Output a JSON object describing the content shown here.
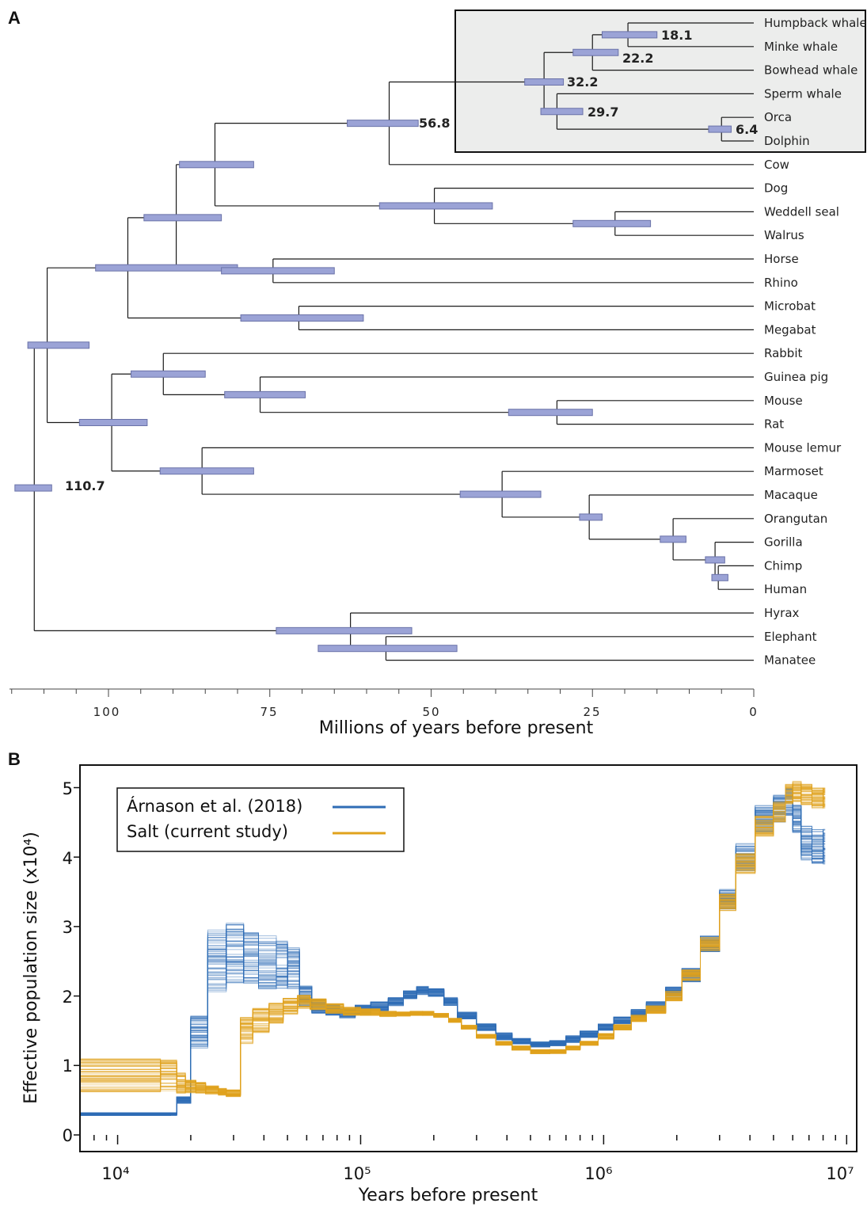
{
  "chart_data": [
    {
      "type": "tree",
      "panel_label": "A",
      "xlabel": "Millions of years before present",
      "x_ticks": [
        "100",
        "75",
        "50",
        "25",
        "0"
      ],
      "xlim": [
        115,
        0
      ],
      "taxa": [
        "Humpback whale",
        "Minke whale",
        "Bowhead whale",
        "Sperm whale",
        "Orca",
        "Dolphin",
        "Cow",
        "Dog",
        "Weddell seal",
        "Walrus",
        "Horse",
        "Rhino",
        "Microbat",
        "Megabat",
        "Rabbit",
        "Guinea pig",
        "Mouse",
        "Rat",
        "Mouse lemur",
        "Marmoset",
        "Macaque",
        "Orangutan",
        "Gorilla",
        "Chimp",
        "Human",
        "Hyrax",
        "Elephant",
        "Manatee"
      ],
      "highlighted_clade": [
        "Humpback whale",
        "Minke whale",
        "Bowhead whale",
        "Sperm whale",
        "Orca",
        "Dolphin"
      ],
      "node_age_labels": [
        {
          "node": "Humpback whale + Minke whale",
          "age": "18.1"
        },
        {
          "node": "Mysticeti",
          "age": "22.2"
        },
        {
          "node": "Cetacea",
          "age": "32.2"
        },
        {
          "node": "Odontoceti",
          "age": "29.7"
        },
        {
          "node": "Orca + Dolphin",
          "age": "6.4"
        },
        {
          "node": "Cetacea + Cow",
          "age": "56.8"
        },
        {
          "node": "Root",
          "age": "110.7"
        }
      ]
    },
    {
      "type": "line",
      "panel_label": "B",
      "xlabel": "Years before present",
      "ylabel": "Effective population size (x10⁴)",
      "x_scale": "log",
      "xlim": [
        7000,
        11000000
      ],
      "ylim": [
        0,
        5.3
      ],
      "x_ticks": [
        "10⁴",
        "10⁵",
        "10⁶",
        "10⁷"
      ],
      "y_ticks": [
        "0",
        "1",
        "2",
        "3",
        "4",
        "5"
      ],
      "legend_position": "top-left",
      "series": [
        {
          "name": "Árnason et al. (2018)",
          "color": "#2f6db5",
          "x": [
            7000,
            16500,
            17500,
            20000,
            23500,
            28000,
            33000,
            38000,
            45000,
            50000,
            56000,
            63000,
            72000,
            82000,
            95000,
            110000,
            130000,
            150000,
            170000,
            190000,
            220000,
            250000,
            300000,
            360000,
            420000,
            500000,
            600000,
            700000,
            800000,
            950000,
            1100000,
            1300000,
            1500000,
            1800000,
            2100000,
            2500000,
            3000000,
            3500000,
            4200000,
            5000000,
            5600000,
            6000000,
            6500000,
            7200000,
            8000000
          ],
          "values": [
            0.3,
            0.3,
            0.5,
            1.5,
            2.5,
            2.6,
            2.55,
            2.5,
            2.45,
            2.4,
            2.0,
            1.85,
            1.8,
            1.75,
            1.8,
            1.85,
            1.92,
            2.02,
            2.08,
            2.05,
            1.92,
            1.72,
            1.55,
            1.42,
            1.35,
            1.3,
            1.32,
            1.38,
            1.45,
            1.55,
            1.65,
            1.75,
            1.85,
            2.05,
            2.3,
            2.75,
            3.4,
            4.0,
            4.55,
            4.7,
            4.8,
            4.55,
            4.2,
            4.15,
            4.15
          ],
          "spread": [
            0.02,
            0.02,
            0.05,
            0.25,
            0.45,
            0.45,
            0.4,
            0.4,
            0.35,
            0.3,
            0.15,
            0.1,
            0.08,
            0.07,
            0.07,
            0.07,
            0.06,
            0.06,
            0.06,
            0.06,
            0.06,
            0.05,
            0.05,
            0.05,
            0.04,
            0.04,
            0.04,
            0.05,
            0.05,
            0.05,
            0.05,
            0.06,
            0.07,
            0.08,
            0.1,
            0.12,
            0.15,
            0.2,
            0.2,
            0.2,
            0.2,
            0.2,
            0.25,
            0.25,
            0.25
          ]
        },
        {
          "name": "Salt (current study)",
          "color": "#e0a21c",
          "x": [
            7000,
            15000,
            17500,
            19000,
            21000,
            23000,
            26000,
            28000,
            32000,
            36000,
            42000,
            48000,
            55000,
            62000,
            72000,
            85000,
            100000,
            120000,
            140000,
            160000,
            180000,
            200000,
            230000,
            260000,
            300000,
            360000,
            420000,
            500000,
            600000,
            700000,
            800000,
            950000,
            1100000,
            1300000,
            1500000,
            1800000,
            2100000,
            2500000,
            3000000,
            3500000,
            4200000,
            5000000,
            5600000,
            6000000,
            6500000,
            7200000,
            8000000
          ],
          "values": [
            0.85,
            0.85,
            0.75,
            0.7,
            0.68,
            0.65,
            0.62,
            0.6,
            1.5,
            1.65,
            1.75,
            1.85,
            1.92,
            1.88,
            1.82,
            1.78,
            1.77,
            1.74,
            1.74,
            1.75,
            1.75,
            1.72,
            1.65,
            1.55,
            1.42,
            1.32,
            1.25,
            1.2,
            1.2,
            1.25,
            1.32,
            1.42,
            1.55,
            1.68,
            1.8,
            2.0,
            2.3,
            2.75,
            3.35,
            3.9,
            4.45,
            4.65,
            4.9,
            4.95,
            4.9,
            4.85,
            4.85
          ],
          "spread": [
            0.25,
            0.25,
            0.15,
            0.1,
            0.08,
            0.06,
            0.05,
            0.05,
            0.2,
            0.18,
            0.15,
            0.12,
            0.1,
            0.08,
            0.07,
            0.06,
            0.05,
            0.04,
            0.03,
            0.03,
            0.03,
            0.03,
            0.03,
            0.03,
            0.03,
            0.03,
            0.03,
            0.03,
            0.03,
            0.03,
            0.03,
            0.04,
            0.04,
            0.05,
            0.06,
            0.07,
            0.08,
            0.1,
            0.12,
            0.15,
            0.15,
            0.15,
            0.15,
            0.15,
            0.15,
            0.15,
            0.15
          ]
        }
      ]
    }
  ]
}
